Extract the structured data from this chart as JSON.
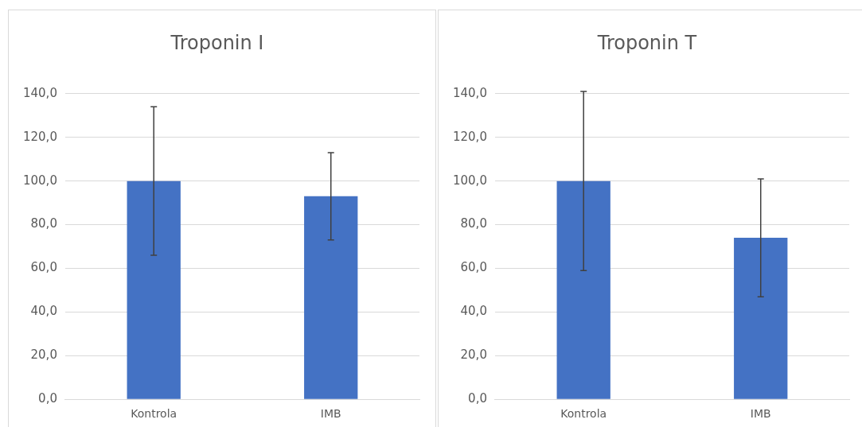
{
  "chart_data": [
    {
      "type": "bar",
      "title": "Troponin I",
      "categories": [
        "Kontrola",
        "IMB"
      ],
      "values": [
        100,
        93
      ],
      "color": "#4472c4",
      "errors": [
        34,
        20
      ],
      "ylim": [
        0,
        140
      ],
      "yticks": [
        {
          "value": 0,
          "label": "0,0"
        },
        {
          "value": 20,
          "label": "20,0"
        },
        {
          "value": 40,
          "label": "40,0"
        },
        {
          "value": 60,
          "label": "60,0"
        },
        {
          "value": 80,
          "label": "80,0"
        },
        {
          "value": 100,
          "label": "100,0"
        },
        {
          "value": 120,
          "label": "120,0"
        },
        {
          "value": 140,
          "label": "140,0"
        }
      ],
      "grid": "y",
      "legend": false
    },
    {
      "type": "bar",
      "title": "Troponin T",
      "categories": [
        "Kontrola",
        "IMB"
      ],
      "values": [
        100,
        74
      ],
      "color": "#4472c4",
      "errors": [
        41,
        27
      ],
      "ylim": [
        0,
        140
      ],
      "yticks": [
        {
          "value": 0,
          "label": "0,0"
        },
        {
          "value": 20,
          "label": "20,0"
        },
        {
          "value": 40,
          "label": "40,0"
        },
        {
          "value": 60,
          "label": "60,0"
        },
        {
          "value": 80,
          "label": "80,0"
        },
        {
          "value": 100,
          "label": "100,0"
        },
        {
          "value": 120,
          "label": "120,0"
        },
        {
          "value": 140,
          "label": "140,0"
        }
      ],
      "grid": "y",
      "legend": false
    }
  ]
}
